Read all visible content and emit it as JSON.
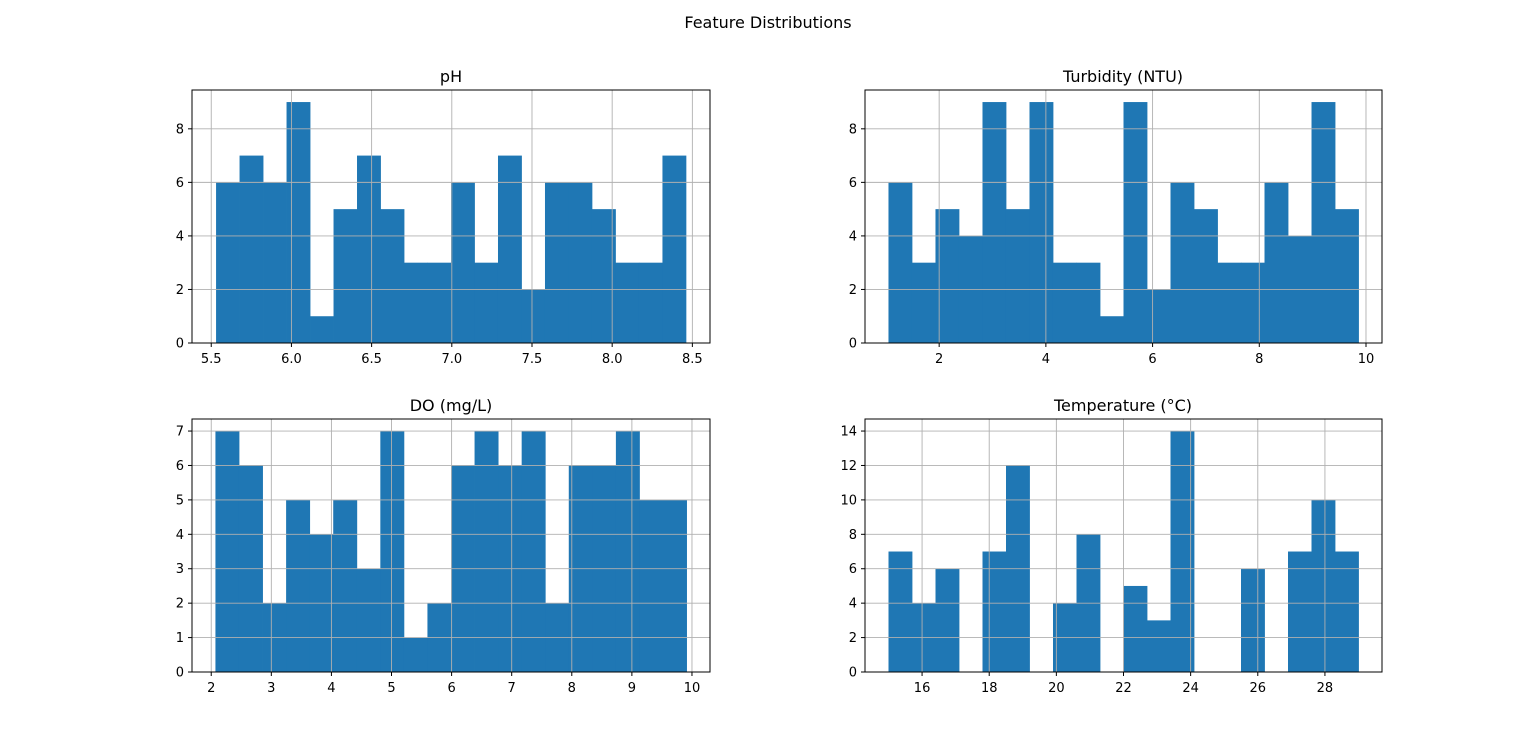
{
  "figure": {
    "title": "Feature Distributions"
  },
  "colors": {
    "bar": "#1f77b4",
    "grid": "#b0b0b0",
    "axes": "#000000"
  },
  "chart_data": [
    {
      "type": "bar",
      "kind": "histogram",
      "title": "pH",
      "xlabel": "",
      "ylabel": "",
      "bins": 20,
      "range": [
        5.53,
        8.46
      ],
      "counts": [
        6,
        7,
        6,
        9,
        1,
        5,
        7,
        5,
        3,
        3,
        6,
        3,
        7,
        2,
        6,
        6,
        5,
        3,
        3,
        7
      ],
      "xlim": [
        5.38,
        8.61
      ],
      "ylim": [
        0,
        9.45
      ],
      "xticks": [
        5.5,
        6.0,
        6.5,
        7.0,
        7.5,
        8.0,
        8.5
      ],
      "xticklabels": [
        "5.5",
        "6.0",
        "6.5",
        "7.0",
        "7.5",
        "8.0",
        "8.5"
      ],
      "yticks": [
        0,
        2,
        4,
        6,
        8
      ],
      "yticklabels": [
        "0",
        "2",
        "4",
        "6",
        "8"
      ],
      "grid": true
    },
    {
      "type": "bar",
      "kind": "histogram",
      "title": "Turbidity (NTU)",
      "xlabel": "",
      "ylabel": "",
      "bins": 20,
      "range": [
        1.05,
        9.86
      ],
      "counts": [
        6,
        3,
        5,
        4,
        9,
        5,
        9,
        3,
        3,
        1,
        9,
        2,
        6,
        5,
        3,
        3,
        6,
        4,
        9,
        5
      ],
      "xlim": [
        0.61,
        10.3
      ],
      "ylim": [
        0,
        9.45
      ],
      "xticks": [
        2,
        4,
        6,
        8,
        10
      ],
      "xticklabels": [
        "2",
        "4",
        "6",
        "8",
        "10"
      ],
      "yticks": [
        0,
        2,
        4,
        6,
        8
      ],
      "yticklabels": [
        "0",
        "2",
        "4",
        "6",
        "8"
      ],
      "grid": true
    },
    {
      "type": "bar",
      "kind": "histogram",
      "title": "DO (mg/L)",
      "xlabel": "",
      "ylabel": "",
      "bins": 20,
      "range": [
        2.07,
        9.91
      ],
      "counts": [
        7,
        6,
        2,
        5,
        4,
        5,
        3,
        7,
        1,
        2,
        6,
        7,
        6,
        7,
        2,
        6,
        6,
        7,
        5,
        5
      ],
      "xlim": [
        1.68,
        10.3
      ],
      "ylim": [
        0,
        7.35
      ],
      "xticks": [
        2,
        3,
        4,
        5,
        6,
        7,
        8,
        9,
        10
      ],
      "xticklabels": [
        "2",
        "3",
        "4",
        "5",
        "6",
        "7",
        "8",
        "9",
        "10"
      ],
      "yticks": [
        0,
        1,
        2,
        3,
        4,
        5,
        6,
        7
      ],
      "yticklabels": [
        "0",
        "1",
        "2",
        "3",
        "4",
        "5",
        "6",
        "7"
      ],
      "grid": true
    },
    {
      "type": "bar",
      "kind": "histogram",
      "title": "Temperature (°C)",
      "xlabel": "",
      "ylabel": "",
      "bins": 20,
      "range": [
        15.0,
        29.0
      ],
      "counts": [
        7,
        4,
        6,
        0,
        7,
        12,
        0,
        4,
        8,
        0,
        5,
        3,
        14,
        0,
        0,
        6,
        0,
        7,
        10,
        7
      ],
      "xlim": [
        14.3,
        29.7
      ],
      "ylim": [
        0,
        14.7
      ],
      "xticks": [
        16,
        18,
        20,
        22,
        24,
        26,
        28
      ],
      "xticklabels": [
        "16",
        "18",
        "20",
        "22",
        "24",
        "26",
        "28"
      ],
      "yticks": [
        0,
        2,
        4,
        6,
        8,
        10,
        12,
        14
      ],
      "yticklabels": [
        "0",
        "2",
        "4",
        "6",
        "8",
        "10",
        "12",
        "14"
      ],
      "grid": true
    }
  ]
}
